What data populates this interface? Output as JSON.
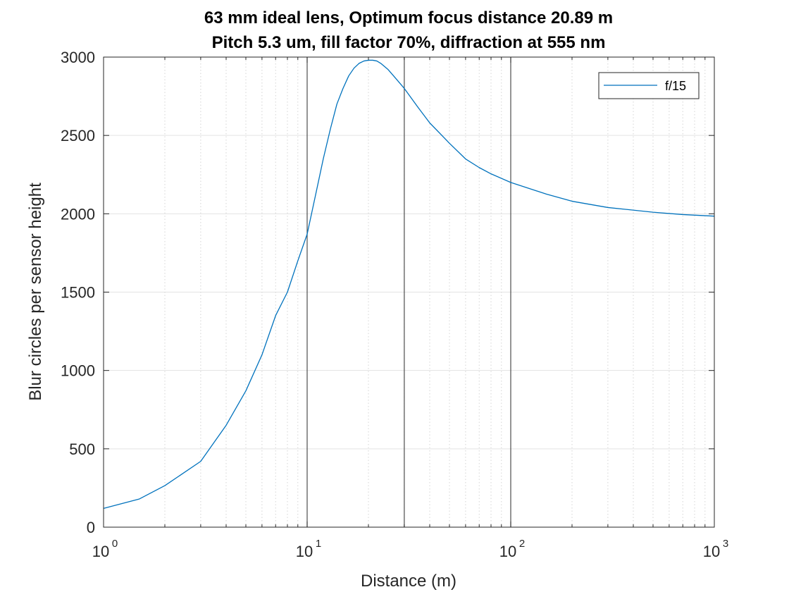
{
  "chart_data": {
    "type": "line",
    "title_line1": "63 mm ideal lens, Optimum focus distance 20.89 m",
    "title_line2": "Pitch 5.3 um, fill factor 70%, diffraction at 555 nm",
    "xlabel": "Distance (m)",
    "ylabel": "Blur circles per sensor height",
    "x_scale": "log",
    "xlim": [
      1,
      1000
    ],
    "ylim": [
      0,
      3000
    ],
    "grid": true,
    "x_ticks": [
      {
        "base": "10",
        "exp": "0"
      },
      {
        "base": "10",
        "exp": "1"
      },
      {
        "base": "10",
        "exp": "2"
      },
      {
        "base": "10",
        "exp": "3"
      }
    ],
    "y_ticks": [
      "0",
      "500",
      "1000",
      "1500",
      "2000",
      "2500",
      "3000"
    ],
    "y_tick_values": [
      0,
      500,
      1000,
      1500,
      2000,
      2500,
      3000
    ],
    "vertical_markers": [
      10,
      30,
      100
    ],
    "legend_position": "top-right",
    "series": [
      {
        "name": "f/15",
        "color": "#0072bd",
        "x": [
          1,
          1.5,
          2,
          3,
          4,
          5,
          6,
          7,
          8,
          9,
          10,
          11,
          12,
          13,
          14,
          15,
          16,
          17,
          18,
          19,
          20,
          21,
          22,
          23,
          25,
          27,
          30,
          35,
          40,
          50,
          60,
          70,
          80,
          100,
          150,
          200,
          300,
          500,
          700,
          1000
        ],
        "y": [
          120,
          180,
          265,
          420,
          650,
          870,
          1100,
          1350,
          1500,
          1700,
          1870,
          2120,
          2350,
          2540,
          2700,
          2800,
          2880,
          2930,
          2960,
          2975,
          2980,
          2980,
          2975,
          2960,
          2920,
          2870,
          2800,
          2680,
          2580,
          2450,
          2350,
          2295,
          2255,
          2200,
          2125,
          2080,
          2040,
          2010,
          1995,
          1985
        ]
      }
    ]
  }
}
